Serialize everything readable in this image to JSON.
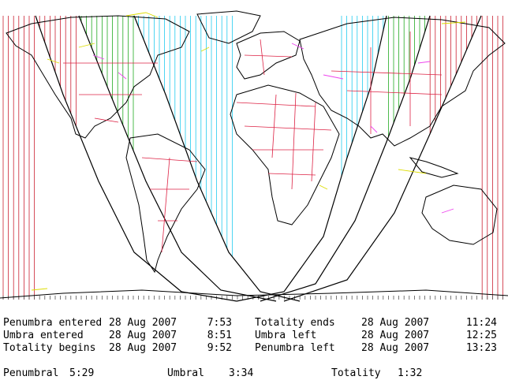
{
  "map": {
    "projection": "equirectangular",
    "colors": {
      "background": "#ffffff",
      "coastline": "#000000",
      "country_border": "#dd2244",
      "state_border": "#ee44ee",
      "lakes_rivers": "#dddd00",
      "penumbra_lines": "#cc2233",
      "umbra_lines": "#22aa22",
      "totality_lines": "#22ccee",
      "contact_curves": "#000000",
      "hatch_gray": "#888888"
    }
  },
  "events": [
    {
      "label": "Penumbra entered",
      "date": "28 Aug 2007",
      "time": "7:53"
    },
    {
      "label": "Umbra entered",
      "date": "28 Aug 2007",
      "time": "8:51"
    },
    {
      "label": "Totality begins",
      "date": "28 Aug 2007",
      "time": "9:52"
    },
    {
      "label": "Totality ends",
      "date": "28 Aug 2007",
      "time": "11:24"
    },
    {
      "label": "Umbra left",
      "date": "28 Aug 2007",
      "time": "12:25"
    },
    {
      "label": "Penumbra left",
      "date": "28 Aug 2007",
      "time": "13:23"
    }
  ],
  "durations": {
    "penumbral_label": "Penumbral",
    "penumbral_value": "5:29",
    "umbral_label": "Umbral",
    "umbral_value": "3:34",
    "totality_label": "Totality",
    "totality_value": "1:32"
  }
}
